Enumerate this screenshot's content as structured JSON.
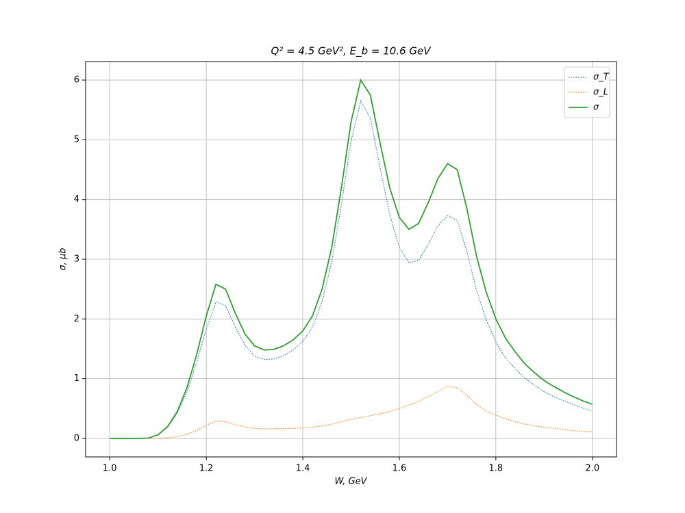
{
  "chart_data": {
    "type": "line",
    "title": "Q² = 4.5 GeV²,  E_b = 10.6 GeV",
    "x_label": "W, GeV",
    "y_label": "σ, μb",
    "x": [
      1.0,
      1.02,
      1.04,
      1.06,
      1.08,
      1.1,
      1.12,
      1.14,
      1.16,
      1.18,
      1.2,
      1.22,
      1.24,
      1.26,
      1.28,
      1.3,
      1.32,
      1.34,
      1.36,
      1.38,
      1.4,
      1.42,
      1.44,
      1.46,
      1.48,
      1.5,
      1.52,
      1.54,
      1.56,
      1.58,
      1.6,
      1.62,
      1.64,
      1.66,
      1.68,
      1.7,
      1.72,
      1.74,
      1.76,
      1.78,
      1.8,
      1.82,
      1.84,
      1.86,
      1.88,
      1.9,
      1.92,
      1.94,
      1.96,
      1.98,
      2.0
    ],
    "series": [
      {
        "name": "σ_T",
        "color": "#1f77b4",
        "linestyle": "dotted",
        "values": [
          0,
          0,
          0,
          0,
          0.005,
          0.057,
          0.19,
          0.42,
          0.78,
          1.27,
          1.83,
          2.29,
          2.22,
          1.87,
          1.56,
          1.38,
          1.32,
          1.33,
          1.385,
          1.48,
          1.625,
          1.86,
          2.29,
          2.96,
          3.92,
          4.98,
          5.65,
          5.37,
          4.54,
          3.75,
          3.2,
          2.94,
          2.98,
          3.25,
          3.56,
          3.73,
          3.65,
          3.13,
          2.48,
          1.99,
          1.61,
          1.35,
          1.17,
          1.01,
          0.89,
          0.78,
          0.7,
          0.63,
          0.57,
          0.51,
          0.46
        ]
      },
      {
        "name": "σ_L",
        "color": "#ff7f0e",
        "linestyle": "dotted",
        "values": [
          0,
          0,
          0,
          0,
          0,
          0.003,
          0.01,
          0.03,
          0.07,
          0.13,
          0.22,
          0.29,
          0.28,
          0.23,
          0.19,
          0.17,
          0.16,
          0.16,
          0.165,
          0.17,
          0.175,
          0.19,
          0.21,
          0.24,
          0.28,
          0.32,
          0.35,
          0.38,
          0.41,
          0.45,
          0.5,
          0.56,
          0.62,
          0.7,
          0.79,
          0.87,
          0.85,
          0.72,
          0.57,
          0.46,
          0.39,
          0.33,
          0.28,
          0.24,
          0.21,
          0.19,
          0.17,
          0.15,
          0.13,
          0.12,
          0.11
        ]
      },
      {
        "name": "σ",
        "color": "#2ca02c",
        "linestyle": "solid",
        "values": [
          0,
          0,
          0,
          0,
          0.005,
          0.06,
          0.2,
          0.45,
          0.85,
          1.4,
          2.05,
          2.58,
          2.5,
          2.1,
          1.75,
          1.55,
          1.48,
          1.49,
          1.55,
          1.65,
          1.8,
          2.05,
          2.5,
          3.2,
          4.2,
          5.3,
          6.0,
          5.75,
          4.95,
          4.2,
          3.7,
          3.5,
          3.6,
          3.95,
          4.35,
          4.6,
          4.5,
          3.85,
          3.05,
          2.45,
          2.0,
          1.68,
          1.45,
          1.25,
          1.1,
          0.97,
          0.87,
          0.78,
          0.7,
          0.63,
          0.57
        ]
      }
    ],
    "xlim": [
      0.95,
      2.05
    ],
    "ylim": [
      -0.31,
      6.31
    ],
    "xticks": [
      {
        "value": 1.0,
        "label": "1.0"
      },
      1.2,
      1.4,
      1.6,
      1.8,
      {
        "value": 2.0,
        "label": "2.0"
      }
    ],
    "yticks": [
      0,
      1,
      2,
      3,
      4,
      5,
      6
    ],
    "grid": true,
    "legend": "upper right"
  }
}
